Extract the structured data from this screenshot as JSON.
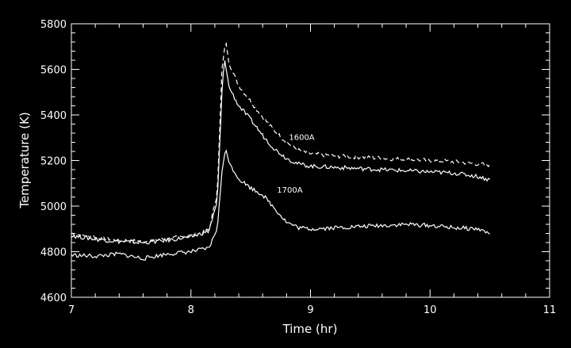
{
  "chart_data": {
    "type": "line",
    "title": "",
    "xlabel": "Time (hr)",
    "ylabel": "Temperature (K)",
    "xlim": [
      7,
      11
    ],
    "ylim": [
      4600,
      5800
    ],
    "xticks": [
      "7",
      "8",
      "9",
      "10",
      "11"
    ],
    "yticks": [
      "4600",
      "4800",
      "5000",
      "5200",
      "5400",
      "5600",
      "5800"
    ],
    "background": "#000000",
    "foreground": "#ffffff",
    "grid": false,
    "series": [
      {
        "name": "1600A",
        "style": "dashed",
        "x": [
          7.0,
          7.2,
          7.4,
          7.6,
          7.8,
          8.0,
          8.15,
          8.22,
          8.26,
          8.29,
          8.32,
          8.4,
          8.5,
          8.6,
          8.7,
          8.8,
          8.9,
          9.0,
          9.2,
          9.4,
          9.6,
          9.8,
          10.0,
          10.2,
          10.4,
          10.5
        ],
        "y": [
          4880,
          4865,
          4850,
          4845,
          4855,
          4870,
          4895,
          5050,
          5600,
          5730,
          5620,
          5530,
          5460,
          5390,
          5330,
          5280,
          5245,
          5230,
          5220,
          5215,
          5210,
          5205,
          5200,
          5195,
          5185,
          5180
        ]
      },
      {
        "name": "",
        "style": "solid",
        "x": [
          7.0,
          7.2,
          7.4,
          7.6,
          7.8,
          8.0,
          8.15,
          8.22,
          8.26,
          8.28,
          8.32,
          8.4,
          8.5,
          8.6,
          8.7,
          8.8,
          8.9,
          9.0,
          9.2,
          9.4,
          9.6,
          9.8,
          10.0,
          10.2,
          10.4,
          10.5
        ],
        "y": [
          4870,
          4855,
          4845,
          4840,
          4850,
          4865,
          4890,
          5020,
          5500,
          5650,
          5520,
          5440,
          5380,
          5310,
          5250,
          5210,
          5185,
          5175,
          5170,
          5165,
          5160,
          5155,
          5150,
          5145,
          5130,
          5115
        ]
      },
      {
        "name": "1700A",
        "style": "solid",
        "x": [
          7.0,
          7.2,
          7.4,
          7.6,
          7.8,
          8.0,
          8.15,
          8.22,
          8.26,
          8.29,
          8.32,
          8.4,
          8.5,
          8.6,
          8.7,
          8.8,
          8.9,
          9.0,
          9.2,
          9.4,
          9.6,
          9.8,
          10.0,
          10.2,
          10.4,
          10.5
        ],
        "y": [
          4785,
          4780,
          4790,
          4770,
          4790,
          4800,
          4815,
          4900,
          5150,
          5255,
          5190,
          5120,
          5080,
          5050,
          4990,
          4930,
          4905,
          4900,
          4905,
          4910,
          4915,
          4920,
          4915,
          4905,
          4900,
          4880
        ]
      }
    ],
    "annotations": [
      {
        "text": "1600A",
        "x": 8.82,
        "y": 5290
      },
      {
        "text": "1700A",
        "x": 8.72,
        "y": 5060
      }
    ]
  }
}
